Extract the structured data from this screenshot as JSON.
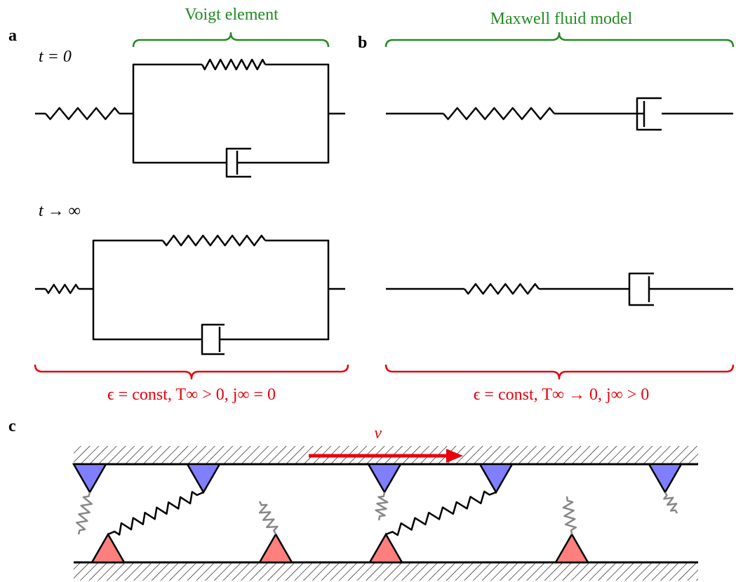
{
  "panel_a": {
    "label": "a",
    "bracket_title": "Voigt element",
    "state_1": "t = 0",
    "state_2": "t → ∞",
    "condition": "ϵ = const, T∞ > 0, j∞ = 0"
  },
  "panel_b": {
    "label": "b",
    "bracket_title": "Maxwell fluid model",
    "condition": "ϵ = const, T∞ → 0, j∞ > 0"
  },
  "panel_c": {
    "label": "c",
    "velocity": "v⃗"
  }
}
